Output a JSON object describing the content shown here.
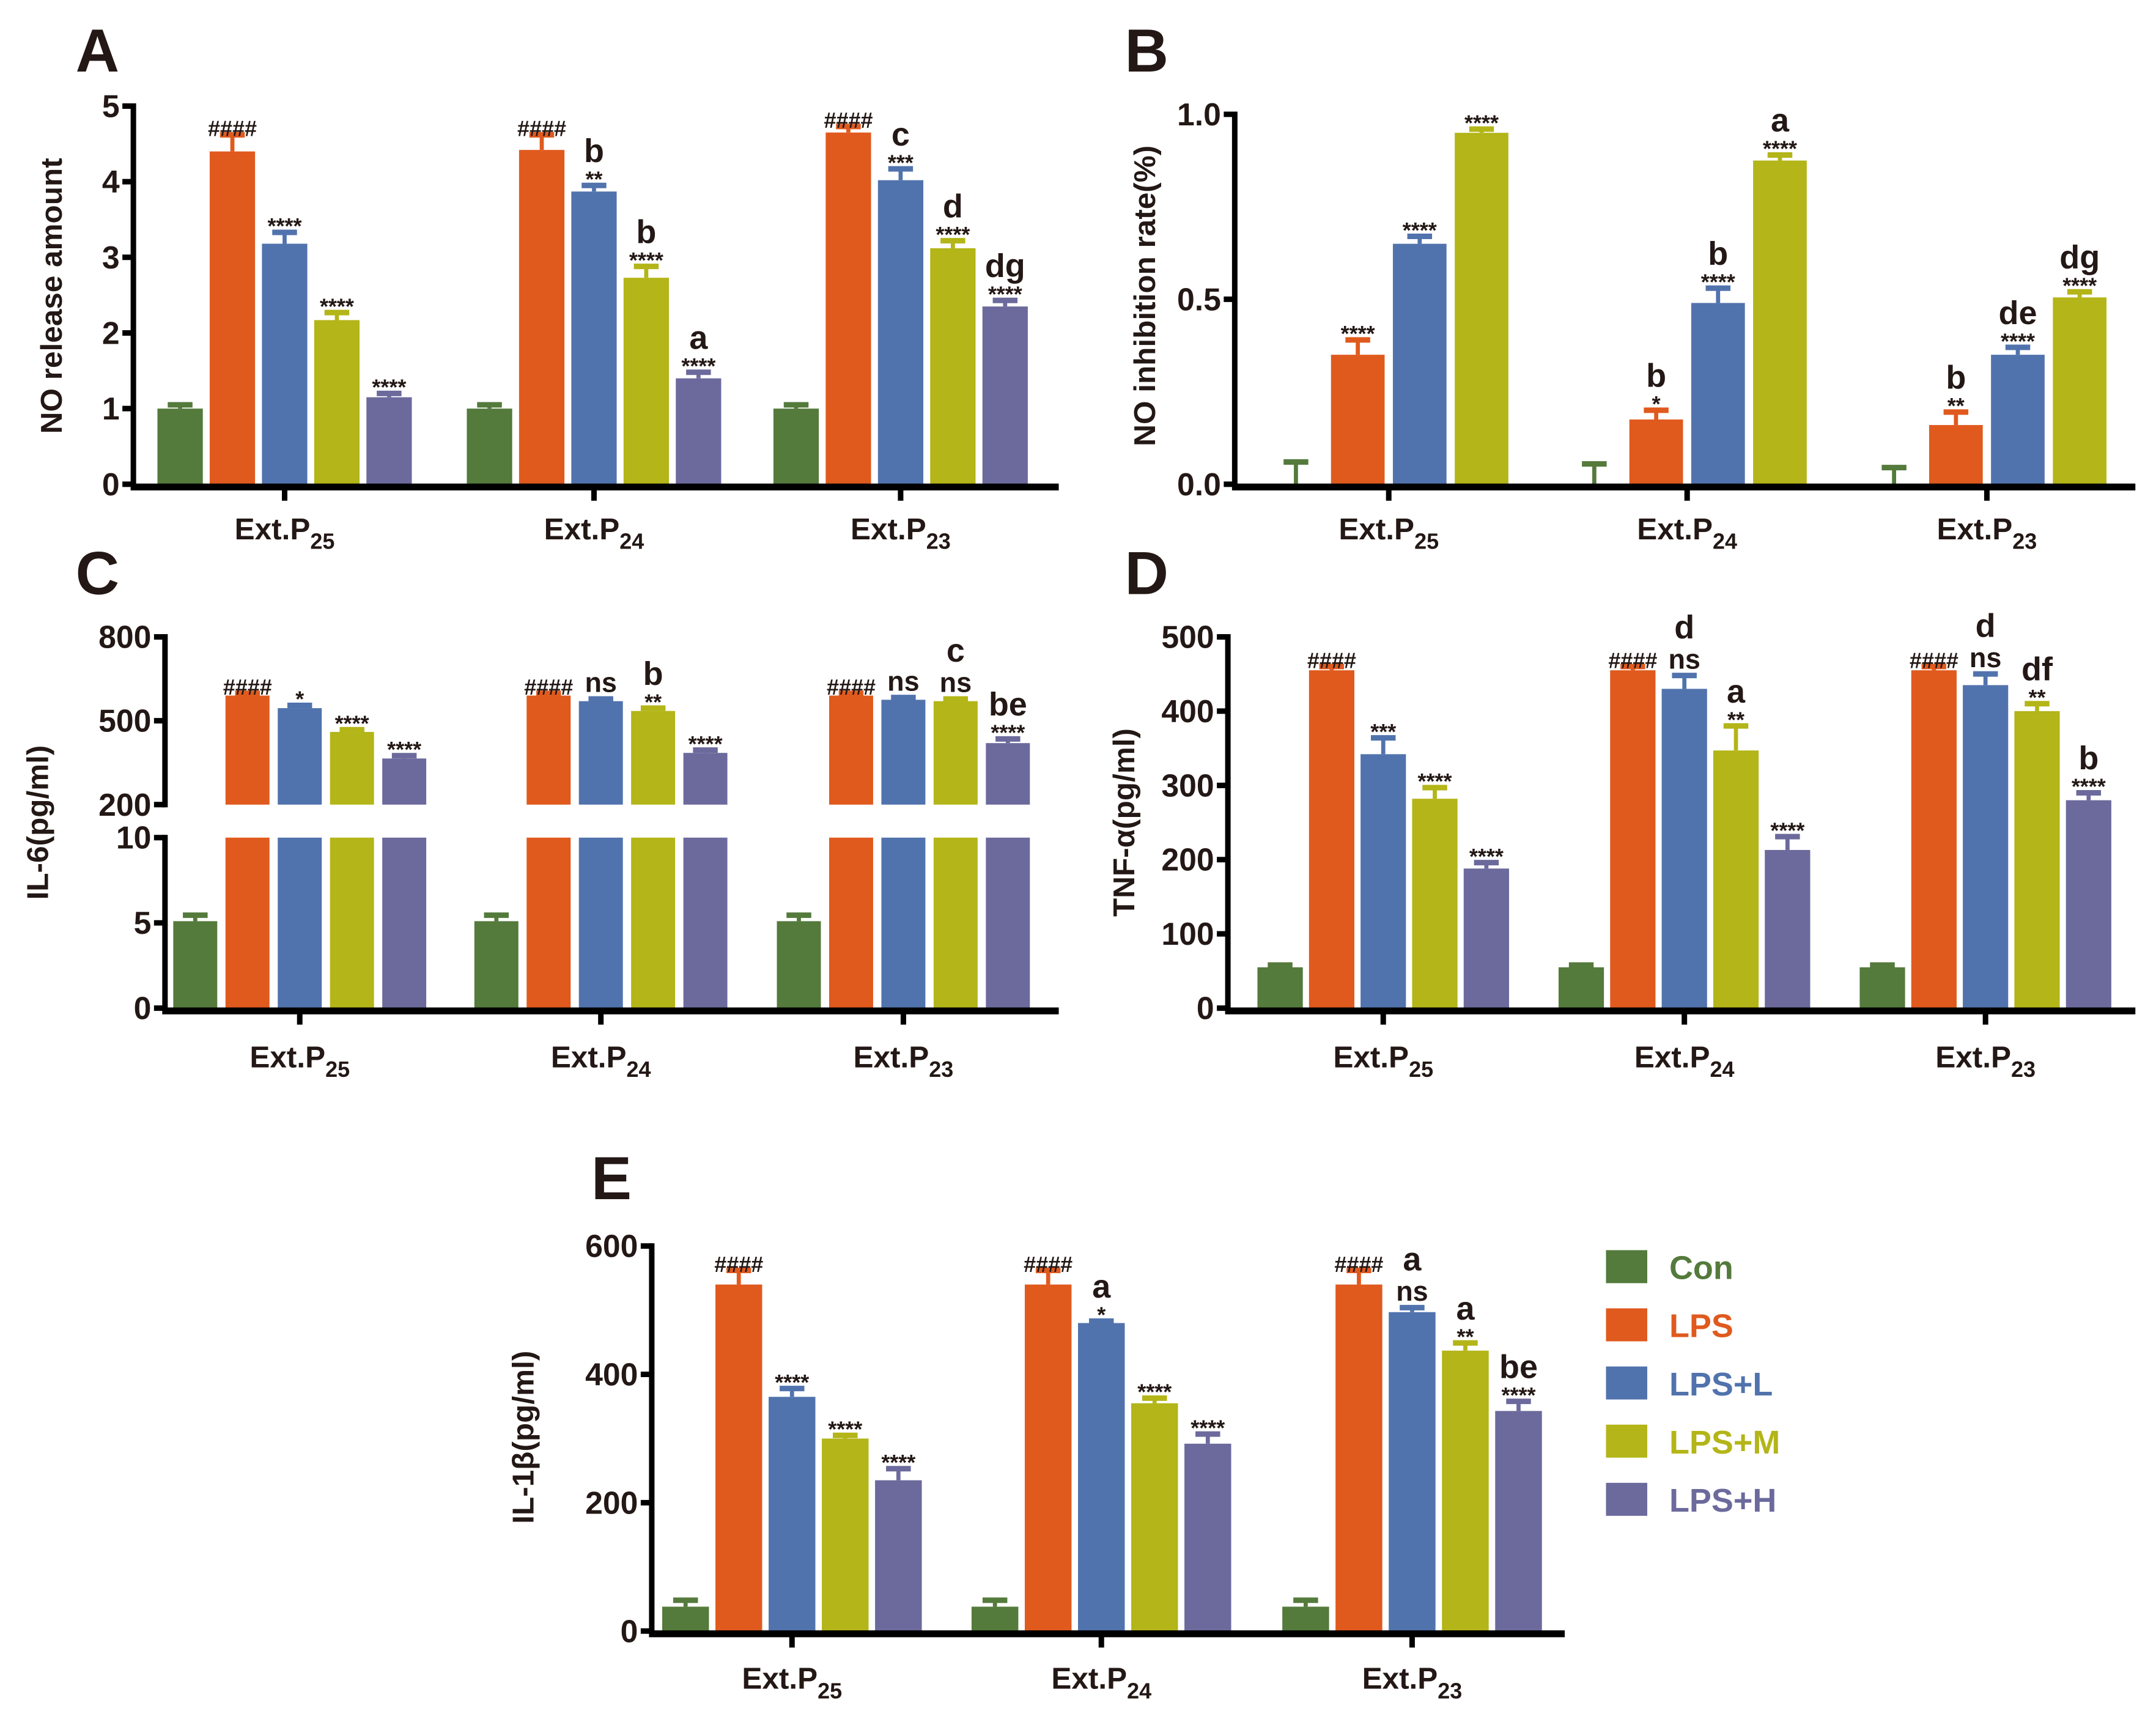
{
  "legend": {
    "placement": "right of panel E",
    "items": [
      {
        "name": "Con",
        "color": "#547a3c"
      },
      {
        "name": "LPS",
        "color": "#e05a1e"
      },
      {
        "name": "LPS+L",
        "color": "#5173ad"
      },
      {
        "name": "LPS+M",
        "color": "#b3b518"
      },
      {
        "name": "LPS+H",
        "color": "#6c6a9c"
      }
    ]
  },
  "chart_data": [
    {
      "panel": "A",
      "type": "bar",
      "ylabel": "NO release amount",
      "categories": [
        {
          "base": "Ext.P",
          "sub": "25"
        },
        {
          "base": "Ext.P",
          "sub": "24"
        },
        {
          "base": "Ext.P",
          "sub": "23"
        }
      ],
      "ylim": [
        0,
        5
      ],
      "yticks": [
        "0",
        "1",
        "2",
        "3",
        "4",
        "5"
      ],
      "grid": false,
      "series": [
        {
          "name": "Con",
          "values": [
            1.0,
            1.0,
            1.0
          ],
          "errors": [
            0.05,
            0.05,
            0.05
          ],
          "annotations": [
            [],
            [],
            []
          ]
        },
        {
          "name": "LPS",
          "values": [
            4.4,
            4.42,
            4.65
          ],
          "errors": [
            0.22,
            0.2,
            0.08
          ],
          "annotations": [
            [
              "####"
            ],
            [
              "####"
            ],
            [
              "####"
            ]
          ]
        },
        {
          "name": "LPS+L",
          "values": [
            3.18,
            3.87,
            4.02
          ],
          "errors": [
            0.15,
            0.08,
            0.15
          ],
          "annotations": [
            [
              "****"
            ],
            [
              "**",
              "b"
            ],
            [
              "***",
              "c"
            ]
          ]
        },
        {
          "name": "LPS+M",
          "values": [
            2.17,
            2.73,
            3.12
          ],
          "errors": [
            0.1,
            0.15,
            0.1
          ],
          "annotations": [
            [
              "****"
            ],
            [
              "****",
              "b"
            ],
            [
              "****",
              "d"
            ]
          ]
        },
        {
          "name": "LPS+H",
          "values": [
            1.15,
            1.4,
            2.35
          ],
          "errors": [
            0.05,
            0.08,
            0.08
          ],
          "annotations": [
            [
              "****"
            ],
            [
              "****",
              "a"
            ],
            [
              "****",
              "dg"
            ]
          ]
        }
      ]
    },
    {
      "panel": "B",
      "type": "bar",
      "ylabel": "NO inhibition rate(%)",
      "categories": [
        {
          "base": "Ext.P",
          "sub": "25"
        },
        {
          "base": "Ext.P",
          "sub": "24"
        },
        {
          "base": "Ext.P",
          "sub": "23"
        }
      ],
      "ylim": [
        0,
        1.0
      ],
      "yticks": [
        "0.0",
        "0.5",
        "1.0"
      ],
      "grid": false,
      "series": [
        {
          "name": "Con",
          "values": [
            0,
            0,
            0
          ],
          "errors": [
            0.06,
            0.055,
            0.045
          ],
          "annotations": [
            [],
            [],
            []
          ]
        },
        {
          "name": "LPS",
          "values": [
            0.35,
            0.175,
            0.16
          ],
          "errors": [
            0.04,
            0.025,
            0.035
          ],
          "annotations": [
            [
              "****"
            ],
            [
              "*",
              "b"
            ],
            [
              "**",
              "b"
            ]
          ]
        },
        {
          "name": "LPS+L",
          "values": [
            0.65,
            0.49,
            0.35
          ],
          "errors": [
            0.02,
            0.04,
            0.02
          ],
          "annotations": [
            [
              "****"
            ],
            [
              "****",
              "b"
            ],
            [
              "****",
              "de"
            ]
          ]
        },
        {
          "name": "LPS+M",
          "values": [
            0.95,
            0.875,
            0.505
          ],
          "errors": [
            0.01,
            0.015,
            0.015
          ],
          "annotations": [
            [
              "****"
            ],
            [
              "****",
              "a"
            ],
            [
              "****",
              "dg"
            ]
          ]
        }
      ]
    },
    {
      "panel": "C",
      "type": "bar",
      "ylabel": "IL-6(pg/ml)",
      "categories": [
        {
          "base": "Ext.P",
          "sub": "25"
        },
        {
          "base": "Ext.P",
          "sub": "24"
        },
        {
          "base": "Ext.P",
          "sub": "23"
        }
      ],
      "ylim": [
        0,
        800
      ],
      "axis_break": [
        10,
        200
      ],
      "yticks": [
        "0",
        "5",
        "10",
        "200",
        "500",
        "800"
      ],
      "grid": false,
      "series": [
        {
          "name": "Con",
          "values": [
            5.1,
            5.1,
            5.1
          ],
          "errors": [
            0.35,
            0.35,
            0.35
          ],
          "annotations": [
            [],
            [],
            []
          ]
        },
        {
          "name": "LPS",
          "values": [
            590,
            590,
            590
          ],
          "errors": [
            8,
            8,
            8
          ],
          "annotations": [
            [
              "####"
            ],
            [
              "####"
            ],
            [
              "####"
            ]
          ]
        },
        {
          "name": "LPS+L",
          "values": [
            545,
            570,
            575
          ],
          "errors": [
            10,
            8,
            8
          ],
          "annotations": [
            [
              "*"
            ],
            [
              "ns"
            ],
            [
              "ns"
            ]
          ]
        },
        {
          "name": "LPS+M",
          "values": [
            460,
            535,
            570
          ],
          "errors": [
            8,
            10,
            8
          ],
          "annotations": [
            [
              "****"
            ],
            [
              "**",
              "b"
            ],
            [
              "ns",
              "c"
            ]
          ]
        },
        {
          "name": "LPS+H",
          "values": [
            365,
            385,
            420
          ],
          "errors": [
            10,
            10,
            15
          ],
          "annotations": [
            [
              "****"
            ],
            [
              "****"
            ],
            [
              "****",
              "be"
            ]
          ]
        }
      ]
    },
    {
      "panel": "D",
      "type": "bar",
      "ylabel": "TNF-α(pg/ml)",
      "categories": [
        {
          "base": "Ext.P",
          "sub": "25"
        },
        {
          "base": "Ext.P",
          "sub": "24"
        },
        {
          "base": "Ext.P",
          "sub": "23"
        }
      ],
      "ylim": [
        0,
        500
      ],
      "yticks": [
        "0",
        "100",
        "200",
        "300",
        "400",
        "500"
      ],
      "grid": false,
      "series": [
        {
          "name": "Con",
          "values": [
            55,
            55,
            55
          ],
          "errors": [
            3,
            3,
            3
          ],
          "annotations": [
            [],
            [],
            []
          ]
        },
        {
          "name": "LPS",
          "values": [
            455,
            455,
            455
          ],
          "errors": [
            5,
            5,
            5
          ],
          "annotations": [
            [
              "####"
            ],
            [
              "####"
            ],
            [
              "####"
            ]
          ]
        },
        {
          "name": "LPS+L",
          "values": [
            342,
            430,
            435
          ],
          "errors": [
            22,
            18,
            15
          ],
          "annotations": [
            [
              "***"
            ],
            [
              "ns",
              "d"
            ],
            [
              "ns",
              "d"
            ]
          ]
        },
        {
          "name": "LPS+M",
          "values": [
            282,
            347,
            400
          ],
          "errors": [
            15,
            33,
            10
          ],
          "annotations": [
            [
              "****"
            ],
            [
              "**",
              "a"
            ],
            [
              "**",
              "df"
            ]
          ]
        },
        {
          "name": "LPS+H",
          "values": [
            188,
            213,
            280
          ],
          "errors": [
            8,
            18,
            10
          ],
          "annotations": [
            [
              "****"
            ],
            [
              "****"
            ],
            [
              "****",
              "b"
            ]
          ]
        }
      ]
    },
    {
      "panel": "E",
      "type": "bar",
      "ylabel": "IL-1β(pg/ml)",
      "categories": [
        {
          "base": "Ext.P",
          "sub": "25"
        },
        {
          "base": "Ext.P",
          "sub": "24"
        },
        {
          "base": "Ext.P",
          "sub": "23"
        }
      ],
      "ylim": [
        0,
        600
      ],
      "yticks": [
        "0",
        "200",
        "400",
        "600"
      ],
      "grid": false,
      "series": [
        {
          "name": "Con",
          "values": [
            38,
            38,
            38
          ],
          "errors": [
            10,
            10,
            10
          ],
          "annotations": [
            [],
            [],
            []
          ]
        },
        {
          "name": "LPS",
          "values": [
            540,
            540,
            540
          ],
          "errors": [
            22,
            22,
            22
          ],
          "annotations": [
            [
              "####"
            ],
            [
              "####"
            ],
            [
              "####"
            ]
          ]
        },
        {
          "name": "LPS+L",
          "values": [
            365,
            480,
            497
          ],
          "errors": [
            13,
            3,
            7
          ],
          "annotations": [
            [
              "****"
            ],
            [
              "*",
              "a"
            ],
            [
              "ns",
              "a"
            ]
          ]
        },
        {
          "name": "LPS+M",
          "values": [
            300,
            355,
            437
          ],
          "errors": [
            5,
            8,
            12
          ],
          "annotations": [
            [
              "****"
            ],
            [
              "****"
            ],
            [
              "**",
              "a"
            ]
          ]
        },
        {
          "name": "LPS+H",
          "values": [
            235,
            292,
            343
          ],
          "errors": [
            18,
            15,
            15
          ],
          "annotations": [
            [
              "****"
            ],
            [
              "****"
            ],
            [
              "****",
              "be"
            ]
          ]
        }
      ]
    }
  ]
}
